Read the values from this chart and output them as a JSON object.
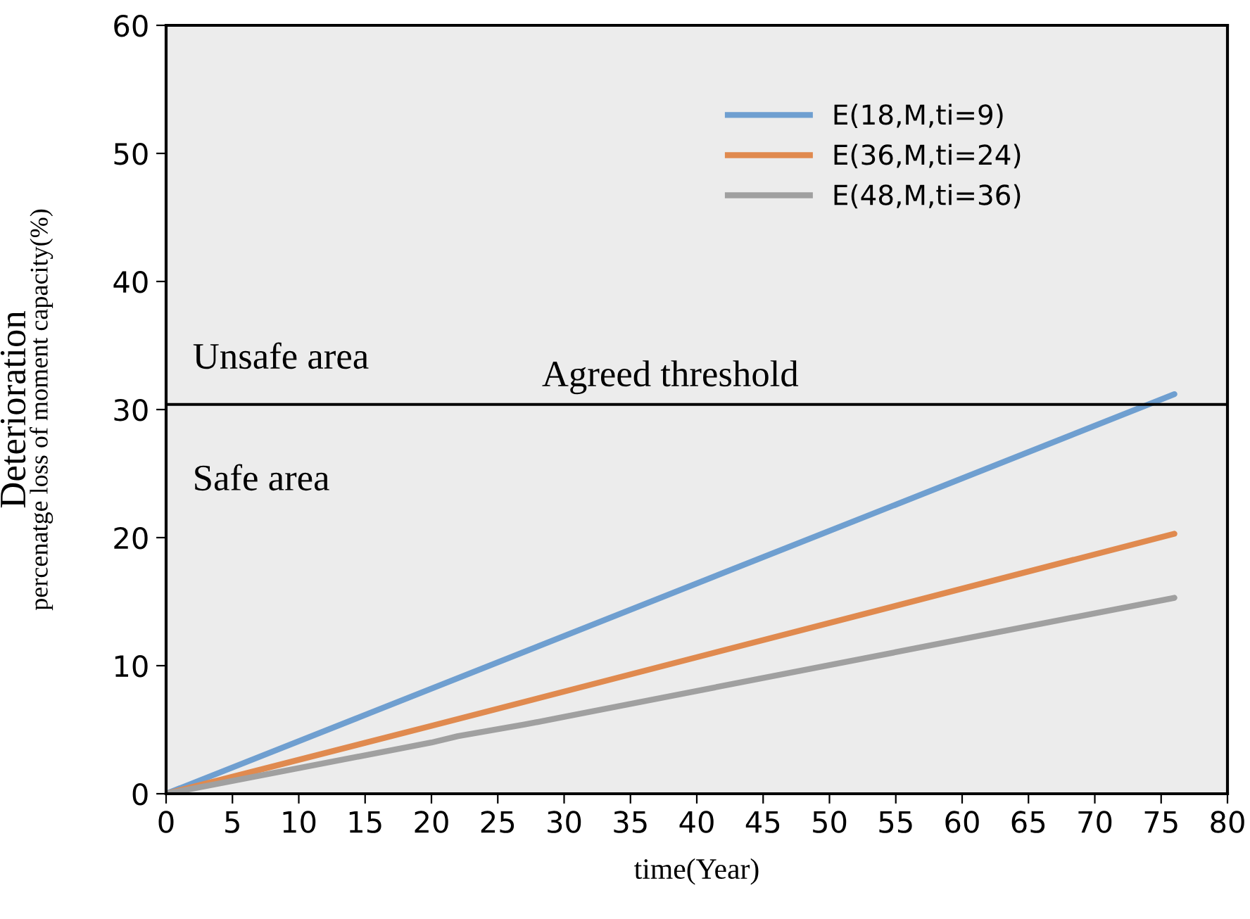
{
  "chart_data": {
    "type": "line",
    "xlabel": "time(Year)",
    "ylabel": "Deterioration\npercenatge loss of moment capacity(%)",
    "xlim": [
      0,
      80
    ],
    "xticks": [
      0,
      5,
      10,
      15,
      20,
      25,
      30,
      35,
      40,
      45,
      50,
      55,
      60,
      65,
      70,
      75,
      80
    ],
    "ylim": [
      0,
      60
    ],
    "yticks": [
      0,
      10,
      20,
      30,
      40,
      50,
      60
    ],
    "series": [
      {
        "name": "E(18,M,ti=9)",
        "color": "#6f9fd0",
        "x": [
          0,
          76
        ],
        "values": [
          0,
          31.2
        ]
      },
      {
        "name": "E(36,M,ti=24)",
        "color": "#e08a4f",
        "x": [
          0,
          20,
          76
        ],
        "values": [
          0,
          5.3,
          20.3
        ]
      },
      {
        "name": "E(48,M,ti=36)",
        "color": "#a0a0a0",
        "x": [
          0,
          20,
          22,
          27,
          76
        ],
        "values": [
          0,
          4.0,
          4.5,
          5.4,
          15.3
        ]
      }
    ],
    "ref_lines": [
      {
        "axis": "y",
        "value": 30.4,
        "label": "Agreed threshold",
        "color": "#000000"
      }
    ],
    "annotations": [
      "Unsafe area",
      "Safe area"
    ],
    "legend": "top right",
    "grid": false,
    "marker": "none",
    "line_style": "solid"
  }
}
